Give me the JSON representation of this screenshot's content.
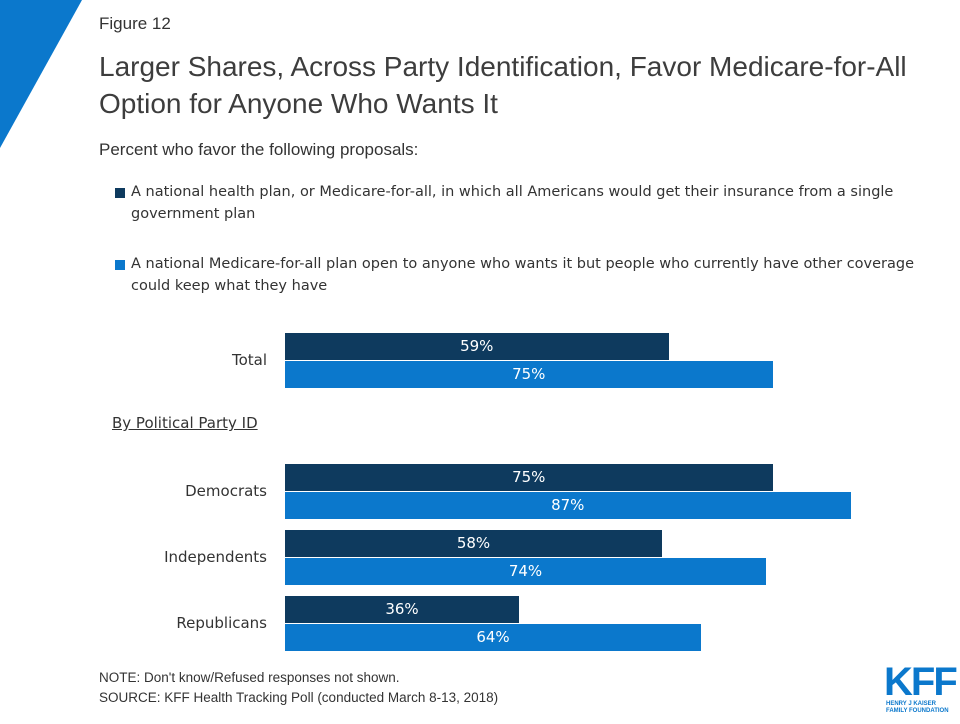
{
  "chart_data": {
    "type": "bar",
    "orientation": "horizontal",
    "figure_label": "Figure 12",
    "title": "Larger Shares, Across Party Identification, Favor Medicare-for-All Option for Anyone Who Wants It",
    "subtitle": "Percent who favor the following proposals:",
    "section_label": "By Political Party ID",
    "categories": [
      "Total",
      "Democrats",
      "Independents",
      "Republicans"
    ],
    "series": [
      {
        "name": "A national health plan, or Medicare-for-all, in which all Americans would get their insurance from a single government plan",
        "color": "#0e3a5e",
        "values": [
          59,
          75,
          58,
          36
        ],
        "value_labels": [
          "59%",
          "75%",
          "58%",
          "36%"
        ]
      },
      {
        "name": "A national Medicare-for-all plan open to anyone who wants it but people who currently have other coverage could keep what they have",
        "color": "#0b78cc",
        "values": [
          75,
          87,
          74,
          64
        ],
        "value_labels": [
          "75%",
          "87%",
          "74%",
          "64%"
        ]
      }
    ],
    "notes": [
      "NOTE: Don't know/Refused responses not shown.",
      "SOURCE: KFF Health Tracking Poll (conducted March 8-13, 2018)"
    ],
    "logo": {
      "mark": "KFF",
      "name": "HENRY J KAISER FAMILY FOUNDATION"
    }
  }
}
